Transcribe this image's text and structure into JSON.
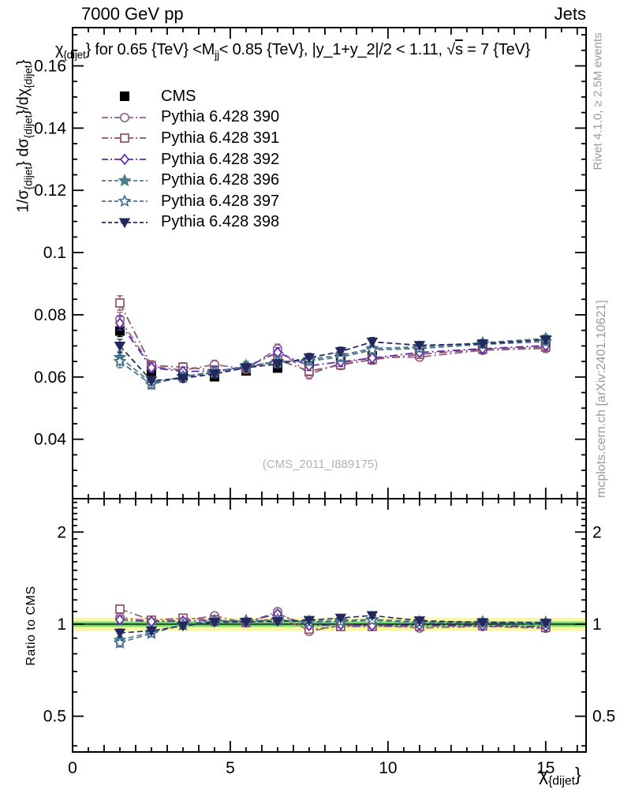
{
  "header": {
    "left_title": "7000 GeV pp",
    "right_title": "Jets"
  },
  "plot_title": {
    "chi": "χ",
    "chi_sub": "{dijet",
    "chi_close": "}",
    "mid": " for 0.65 {TeV} <M",
    "m_sub": "jj",
    "tail": "< 0.85 {TeV}, |y_1+y_2|/2 < 1.11, ",
    "sqrt_sym": "√",
    "sqrt_arg": "s",
    "end": " = 7 {TeV}"
  },
  "y_axis_label": {
    "p1": "1/σ",
    "s1": "{dijet",
    "b1": "}",
    "p2": " dσ",
    "s2": "{dijet",
    "b2": "}",
    "p3": "/dχ",
    "s3": "{dijet",
    "b3": "}"
  },
  "x_axis_label": {
    "chi": "χ",
    "sub": "{dijet",
    "close": "}"
  },
  "ratio_axis_label": "Ratio to CMS",
  "side_notes": {
    "top": "Rivet 4.1.0, ≥ 2.5M events",
    "bottom": "mcplots.cern.ch [arXiv:2401.10621]"
  },
  "watermark": "(CMS_2011_I889175)",
  "chart_data": {
    "type": "scatter",
    "title": "chi_dijet for 0.65 TeV < Mjj < 0.85 TeV, |y1+y2|/2 < 1.11, sqrt(s) = 7 TeV",
    "xlabel": "chi_dijet",
    "ylabel": "1/sigma_dijet dsigma_dijet/dchi_dijet",
    "x": [
      1.5,
      2.5,
      3.5,
      4.5,
      5.5,
      6.5,
      7.5,
      8.5,
      9.5,
      11,
      13,
      15
    ],
    "series": [
      {
        "name": "CMS",
        "marker": "square-filled",
        "color": "#000000",
        "linestyle": "none",
        "is_ref": true,
        "values": [
          0.0748,
          0.0618,
          0.0604,
          0.0601,
          0.062,
          0.0629,
          0.0643,
          0.0651,
          0.0668,
          0.0684,
          0.0698,
          0.0714
        ],
        "yerr": [
          0.0018,
          0.0014,
          0.0013,
          0.0013,
          0.0013,
          0.0013,
          0.0013,
          0.0013,
          0.0014,
          0.0011,
          0.0011,
          0.0012
        ]
      },
      {
        "name": "Pythia 6.428 390",
        "marker": "circle-open",
        "color": "#96618F",
        "linestyle": "dashdot",
        "is_ref": false,
        "values": [
          0.0786,
          0.0634,
          0.0622,
          0.064,
          0.0626,
          0.0691,
          0.0609,
          0.0644,
          0.0663,
          0.0664,
          0.0686,
          0.0692
        ],
        "yerr": [
          0.0022,
          0.0015,
          0.0014,
          0.0014,
          0.0014,
          0.0015,
          0.0015,
          0.0015,
          0.0015,
          0.0012,
          0.0012,
          0.0013
        ]
      },
      {
        "name": "Pythia 6.428 391",
        "marker": "square-open",
        "color": "#8E5266",
        "linestyle": "dashdot",
        "is_ref": false,
        "values": [
          0.0838,
          0.0637,
          0.0632,
          0.0622,
          0.0627,
          0.0656,
          0.0619,
          0.0639,
          0.0656,
          0.0673,
          0.0689,
          0.0696
        ],
        "yerr": [
          0.0023,
          0.0015,
          0.0014,
          0.0014,
          0.0014,
          0.0015,
          0.0015,
          0.0015,
          0.0015,
          0.0012,
          0.0012,
          0.0013
        ]
      },
      {
        "name": "Pythia 6.428 392",
        "marker": "diamond-open",
        "color": "#5D2EA6",
        "linestyle": "dashdot",
        "is_ref": false,
        "values": [
          0.0773,
          0.063,
          0.0618,
          0.0619,
          0.0632,
          0.0679,
          0.0636,
          0.0649,
          0.0661,
          0.0679,
          0.0691,
          0.0701
        ],
        "yerr": [
          0.0022,
          0.0015,
          0.0014,
          0.0014,
          0.0014,
          0.0015,
          0.0015,
          0.0015,
          0.0015,
          0.0012,
          0.0012,
          0.0013
        ]
      },
      {
        "name": "Pythia 6.428 396",
        "marker": "star-filled",
        "color": "#4E7B8C",
        "linestyle": "dashed",
        "is_ref": false,
        "values": [
          0.0663,
          0.0582,
          0.06,
          0.0614,
          0.0637,
          0.0646,
          0.0657,
          0.067,
          0.0692,
          0.0697,
          0.071,
          0.0724
        ],
        "yerr": [
          0.002,
          0.0014,
          0.0013,
          0.0013,
          0.0013,
          0.0014,
          0.0014,
          0.0014,
          0.0014,
          0.0011,
          0.0011,
          0.0012
        ]
      },
      {
        "name": "Pythia 6.428 397",
        "marker": "star-open",
        "color": "#48708E",
        "linestyle": "dashed",
        "is_ref": false,
        "values": [
          0.065,
          0.0576,
          0.0602,
          0.0617,
          0.0634,
          0.065,
          0.0652,
          0.0664,
          0.0687,
          0.0692,
          0.0705,
          0.0714
        ],
        "yerr": [
          0.002,
          0.0014,
          0.0013,
          0.0013,
          0.0013,
          0.0014,
          0.0014,
          0.0014,
          0.0014,
          0.0011,
          0.0011,
          0.0012
        ]
      },
      {
        "name": "Pythia 6.428 398",
        "marker": "triangledown-filled",
        "color": "#23295F",
        "linestyle": "dashed",
        "is_ref": false,
        "values": [
          0.07,
          0.0588,
          0.0596,
          0.061,
          0.063,
          0.0642,
          0.0662,
          0.0682,
          0.0713,
          0.0702,
          0.0707,
          0.072
        ],
        "yerr": [
          0.0021,
          0.0014,
          0.0013,
          0.0013,
          0.0013,
          0.0014,
          0.0014,
          0.0014,
          0.0014,
          0.0011,
          0.0011,
          0.0012
        ]
      }
    ],
    "axes": {
      "xlim": [
        0,
        16.28
      ],
      "ylim": [
        0.0209,
        0.1723
      ],
      "grid": false,
      "xticks": {
        "major": [
          0,
          5,
          10,
          15
        ],
        "labels": [
          "0",
          "5",
          "10",
          "15"
        ],
        "integer_step": 1,
        "minor_step": 0.5
      },
      "yticks": {
        "major": [
          0.04,
          0.06,
          0.08,
          0.1,
          0.12,
          0.14,
          0.16
        ],
        "labels": [
          "0.04",
          "0.06",
          "0.08",
          "0.1",
          "0.12",
          "0.14",
          "0.16"
        ],
        "minor_step": 0.005
      }
    },
    "ratio": {
      "label": "Ratio to CMS",
      "scale": "log",
      "ylim": [
        0.382,
        2.571
      ],
      "baseline": 1,
      "ticks": {
        "major": [
          0.5,
          1,
          2
        ],
        "labels": [
          "0.5",
          "1",
          "2"
        ],
        "minor": [
          0.4,
          0.6,
          0.7,
          0.8,
          0.9,
          1.1,
          1.2,
          1.3,
          1.4,
          1.5,
          1.6,
          1.7,
          1.8,
          1.9,
          2.1,
          2.2,
          2.3,
          2.4,
          2.5
        ]
      },
      "band_outer": {
        "range": [
          0.95,
          1.05
        ],
        "color": "#FBF8A2"
      },
      "band_inner": {
        "range": [
          0.98,
          1.02
        ],
        "color": "#71DB71"
      }
    },
    "legend_position": "top-left"
  }
}
